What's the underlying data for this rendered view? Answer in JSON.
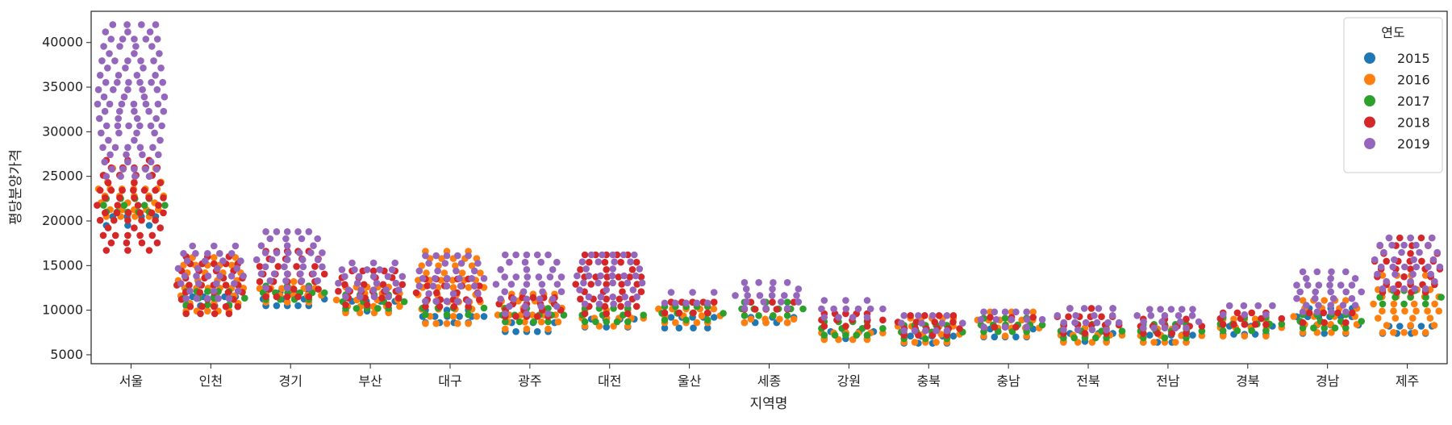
{
  "chart_data": {
    "type": "scatter",
    "subtype": "swarm",
    "xlabel": "지역명",
    "ylabel": "평당분양가격",
    "ylim": [
      4000,
      43500
    ],
    "yticks": [
      5000,
      10000,
      15000,
      20000,
      25000,
      30000,
      35000,
      40000
    ],
    "categories": [
      "서울",
      "인천",
      "경기",
      "부산",
      "대구",
      "광주",
      "대전",
      "울산",
      "세종",
      "강원",
      "충북",
      "충남",
      "전북",
      "전남",
      "경북",
      "경남",
      "제주"
    ],
    "legend": {
      "title": "연도",
      "position": "top-right"
    },
    "series": [
      {
        "name": "2015",
        "color": "#1f77b4",
        "min": [
          19500,
          10500,
          10500,
          9900,
          8600,
          7600,
          8100,
          8000,
          8600,
          6800,
          6300,
          7000,
          6500,
          6400,
          7300,
          7400,
          7400
        ],
        "max": [
          20500,
          11500,
          12000,
          11000,
          10000,
          8600,
          9000,
          9200,
          9200,
          7600,
          7100,
          7900,
          7400,
          7200,
          8200,
          10200,
          8200
        ]
      },
      {
        "name": "2016",
        "color": "#ff7f0e",
        "min": [
          20500,
          9900,
          10900,
          9700,
          8500,
          7900,
          8200,
          8600,
          8600,
          6700,
          6400,
          7100,
          6400,
          6400,
          7100,
          7500,
          7500
        ],
        "max": [
          25900,
          15900,
          13200,
          12600,
          16600,
          11800,
          10000,
          10900,
          9000,
          8200,
          9100,
          9800,
          8000,
          7900,
          9000,
          11100,
          13900
        ]
      },
      {
        "name": "2017",
        "color": "#2ca02c",
        "min": [
          21000,
          10600,
          11200,
          10200,
          9500,
          8700,
          8700,
          8900,
          9400,
          7200,
          6800,
          7600,
          6900,
          6900,
          7700,
          8000,
          10700
        ]
      },
      {
        "name": "2018",
        "color": "#d62728",
        "min": [
          16700,
          9600,
          11500,
          10600,
          10400,
          9300,
          9600,
          9700,
          10100,
          8200,
          7200,
          8100,
          7400,
          7400,
          8400,
          8600,
          12000
        ],
        "max": [
          26800,
          16000,
          16600,
          14400,
          13500,
          11400,
          16200,
          10900,
          10900,
          9600,
          9400,
          9200,
          10200,
          9000,
          9700,
          9700,
          18100
        ]
      },
      {
        "name": "2019",
        "color": "#9467bd",
        "min": [
          25000,
          11300,
          12500,
          11500,
          11000,
          9600,
          10700,
          10800,
          10200,
          9200,
          7700,
          8100,
          7800,
          8000,
          9500,
          9800,
          12400
        ],
        "max": [
          42000,
          17200,
          18800,
          15300,
          16100,
          16200,
          16200,
          12000,
          13100,
          11100,
          9400,
          9800,
          10200,
          10100,
          10500,
          14300,
          18100
        ]
      }
    ]
  }
}
